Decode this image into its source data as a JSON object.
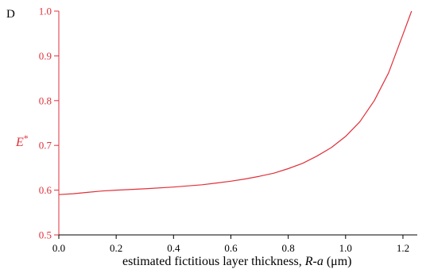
{
  "chart_data": {
    "type": "line",
    "panel_label": "D",
    "title": "",
    "xlabel_prefix": "estimated fictitious layer thickness, ",
    "xlabel_var": "R-a",
    "xlabel_suffix": " (μm)",
    "ylabel_main": "E",
    "ylabel_sup": "*",
    "xlim": [
      0.0,
      1.25
    ],
    "ylim": [
      0.5,
      1.0
    ],
    "x_ticks": [
      "0.0",
      "0.2",
      "0.4",
      "0.6",
      "0.8",
      "1.0",
      "1.2"
    ],
    "y_ticks": [
      "0.5",
      "0.6",
      "0.7",
      "0.8",
      "0.9",
      "1.0"
    ],
    "grid": false,
    "colors": {
      "axis_y": "#e0303a",
      "line": "#e0303a",
      "axis_x": "#000000"
    },
    "series": [
      {
        "x": [
          0.0,
          0.05,
          0.1,
          0.15,
          0.2,
          0.3,
          0.4,
          0.5,
          0.55,
          0.6,
          0.65,
          0.7,
          0.75,
          0.8,
          0.85,
          0.9,
          0.95,
          1.0,
          1.05,
          1.1,
          1.15,
          1.2,
          1.23
        ],
        "y": [
          0.59,
          0.592,
          0.595,
          0.598,
          0.6,
          0.603,
          0.607,
          0.612,
          0.616,
          0.62,
          0.625,
          0.631,
          0.638,
          0.648,
          0.66,
          0.676,
          0.695,
          0.72,
          0.753,
          0.8,
          0.862,
          0.948,
          1.0
        ]
      }
    ]
  }
}
